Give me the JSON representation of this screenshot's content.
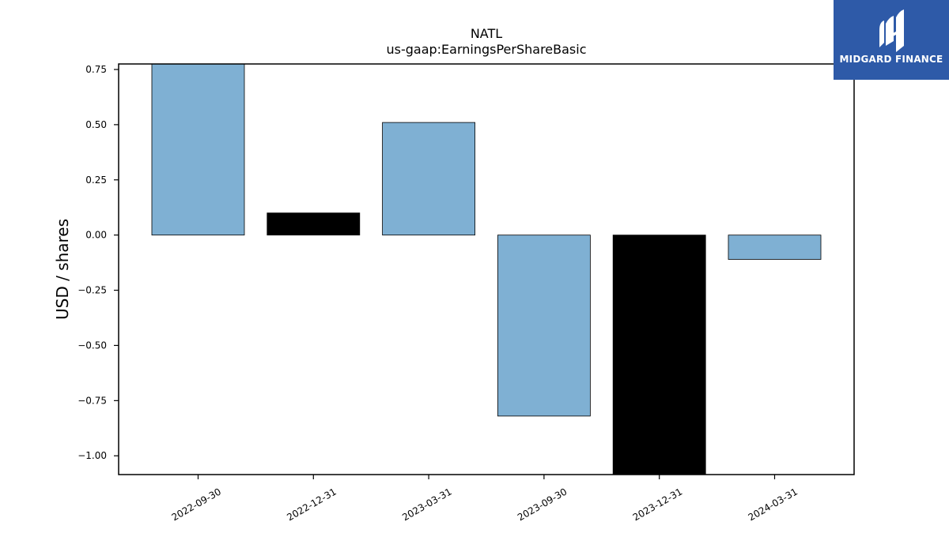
{
  "chart_data": {
    "type": "bar",
    "title": "NATL",
    "subtitle": "us-gaap:EarningsPerShareBasic",
    "xlabel": "",
    "ylabel": "USD / shares",
    "categories": [
      "2022-09-30",
      "2022-12-31",
      "2023-03-31",
      "2023-09-30",
      "2023-12-31",
      "2024-03-31"
    ],
    "values": [
      0.78,
      0.1,
      0.51,
      -0.82,
      -1.09,
      -0.11
    ],
    "bar_colors": [
      "#7fb0d3",
      "#000000",
      "#7fb0d3",
      "#7fb0d3",
      "#000000",
      "#7fb0d3"
    ],
    "ylim": [
      -1.085,
      0.775
    ],
    "yticks": [
      0.75,
      0.5,
      0.25,
      0.0,
      -0.25,
      -0.5,
      -0.75,
      -1.0
    ],
    "ytick_labels": [
      "0.75",
      "0.50",
      "0.25",
      "0.00",
      "−0.25",
      "−0.50",
      "−0.75",
      "−1.00"
    ],
    "grid": false,
    "legend": "none"
  },
  "logo": {
    "text": "MIDGARD FINANCE",
    "background": "#2e5aa8",
    "icon": "midgard-logo-icon"
  }
}
